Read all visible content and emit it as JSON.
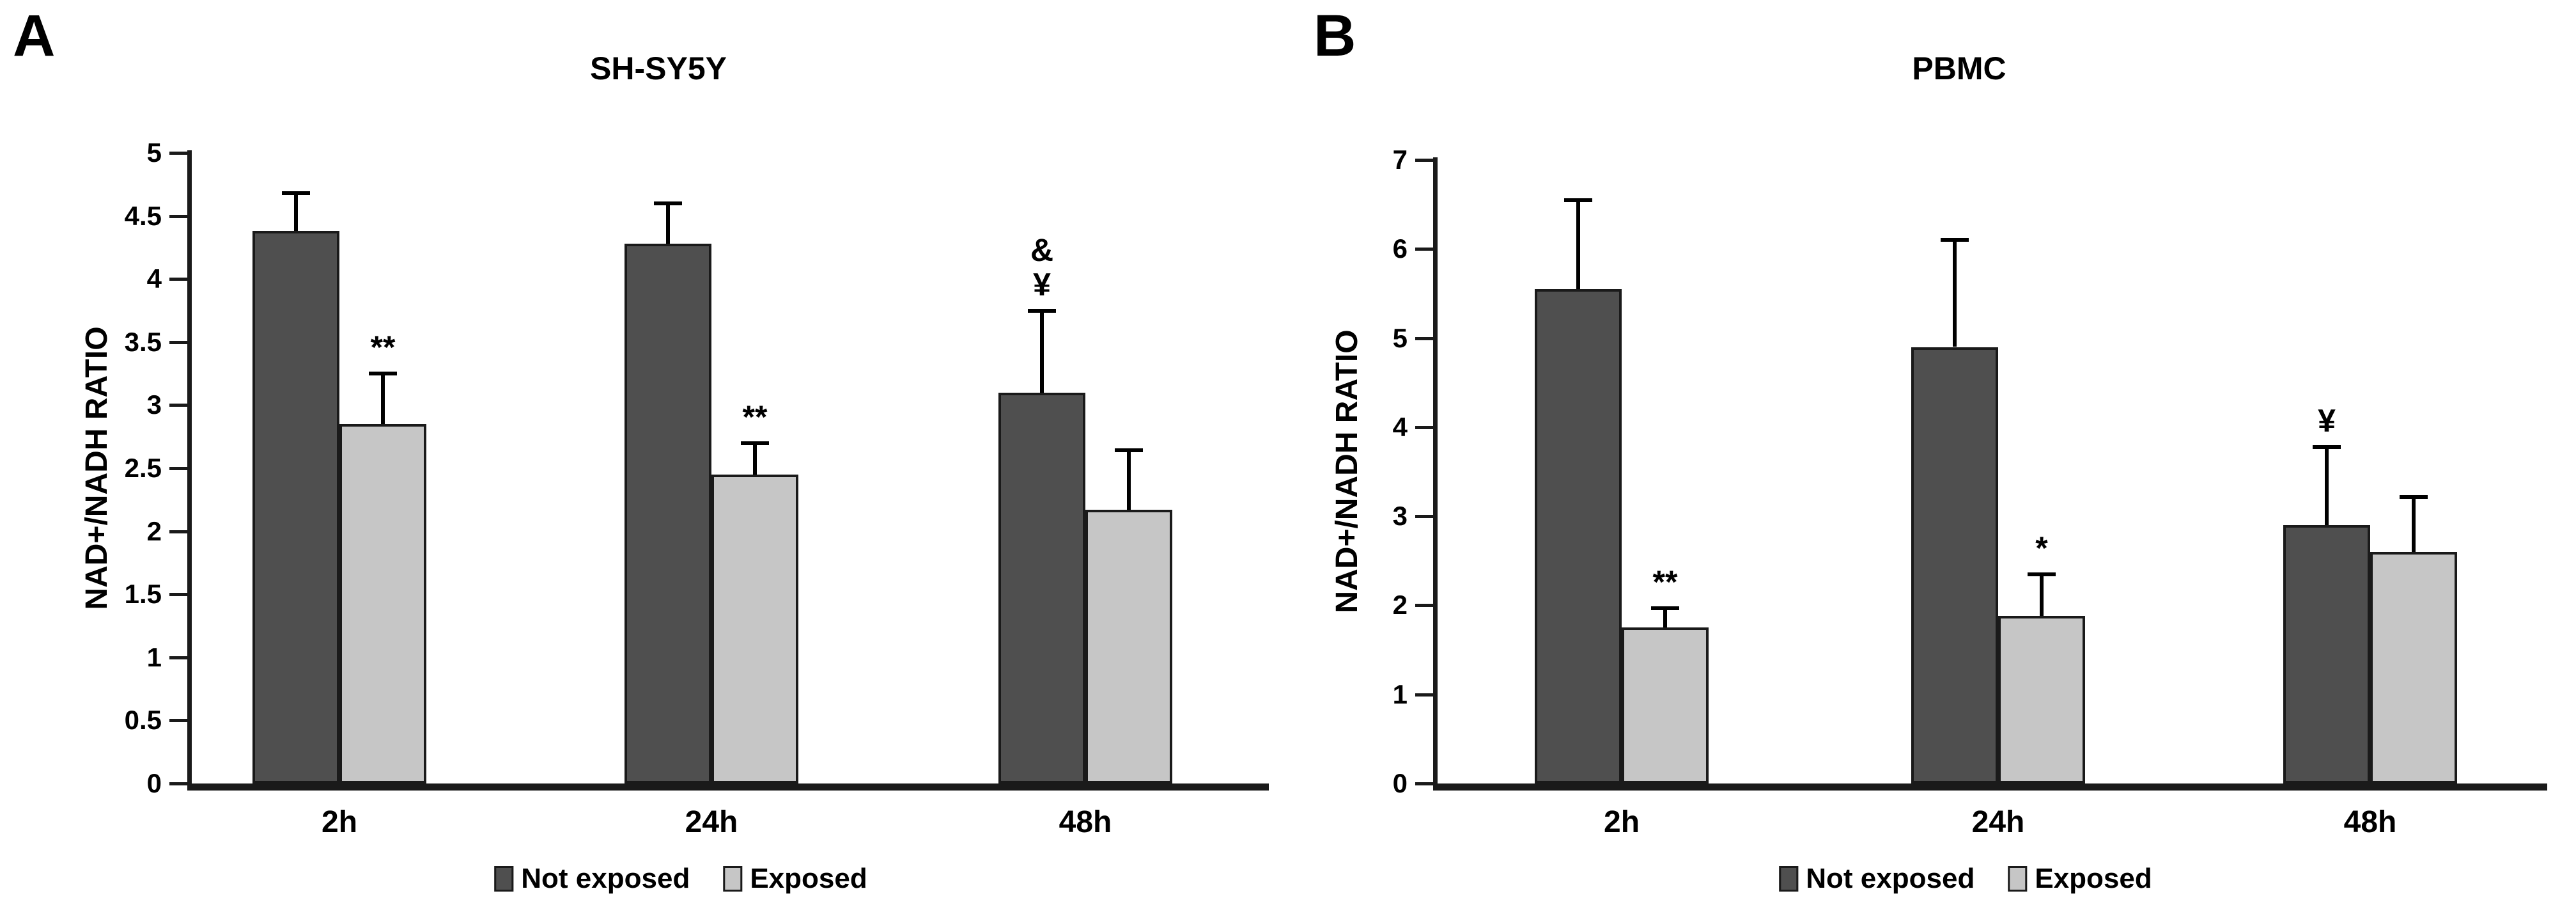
{
  "legend": {
    "items": [
      {
        "label": "Not exposed",
        "color": "#4f4f4f"
      },
      {
        "label": "Exposed",
        "color": "#c6c6c6"
      }
    ]
  },
  "colors": {
    "not_exposed_fill": "#4f4f4f",
    "exposed_fill": "#c6c6c6",
    "outline": "#1a1a1a",
    "error_bar": "#000000",
    "background": "#ffffff",
    "text": "#000000"
  },
  "chart_data": [
    {
      "type": "bar",
      "panel_label": "A",
      "title": "SH-SY5Y",
      "xlabel": "",
      "ylabel": "NAD+/NADH RATIO",
      "ylim": [
        0,
        5
      ],
      "ytick_step": 0.5,
      "yticks": [
        "0",
        "0.5",
        "1",
        "1.5",
        "2",
        "2.5",
        "3",
        "3.5",
        "4",
        "4.5",
        "5"
      ],
      "categories": [
        "2h",
        "24h",
        "48h"
      ],
      "grid": false,
      "legend_position": "bottom",
      "error_bars": "upper only",
      "series": [
        {
          "name": "Not exposed",
          "color": "#4f4f4f",
          "values": [
            4.38,
            4.28,
            3.1
          ],
          "errors_up": [
            0.3,
            0.32,
            0.65
          ]
        },
        {
          "name": "Exposed",
          "color": "#c6c6c6",
          "values": [
            2.85,
            2.45,
            2.17
          ],
          "errors_up": [
            0.4,
            0.25,
            0.47
          ]
        }
      ],
      "annotations": [
        {
          "category": "2h",
          "series": "Exposed",
          "text": "**"
        },
        {
          "category": "24h",
          "series": "Exposed",
          "text": "**"
        },
        {
          "category": "48h",
          "series": "Not exposed",
          "text": "&\n¥"
        }
      ]
    },
    {
      "type": "bar",
      "panel_label": "B",
      "title": "PBMC",
      "xlabel": "",
      "ylabel": "NAD+/NADH RATIO",
      "ylim": [
        0,
        7
      ],
      "ytick_step": 1,
      "yticks": [
        "0",
        "1",
        "2",
        "3",
        "4",
        "5",
        "6",
        "7"
      ],
      "categories": [
        "2h",
        "24h",
        "48h"
      ],
      "grid": false,
      "legend_position": "bottom",
      "error_bars": "upper only",
      "series": [
        {
          "name": "Not exposed",
          "color": "#4f4f4f",
          "values": [
            5.55,
            4.9,
            2.9
          ],
          "errors_up": [
            1.0,
            1.2,
            0.88
          ]
        },
        {
          "name": "Exposed",
          "color": "#c6c6c6",
          "values": [
            1.75,
            1.88,
            2.6
          ],
          "errors_up": [
            0.22,
            0.47,
            0.62
          ]
        }
      ],
      "annotations": [
        {
          "category": "2h",
          "series": "Exposed",
          "text": "**"
        },
        {
          "category": "24h",
          "series": "Exposed",
          "text": "*"
        },
        {
          "category": "48h",
          "series": "Not exposed",
          "text": "¥"
        }
      ]
    }
  ]
}
